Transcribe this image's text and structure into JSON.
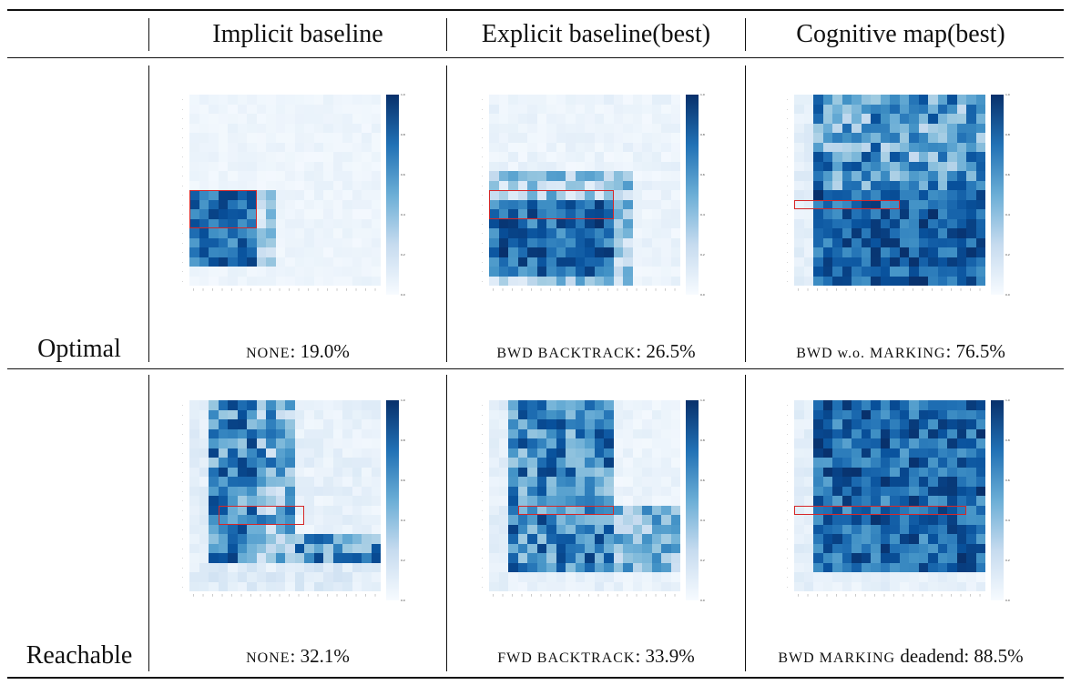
{
  "table": {
    "columns": [
      "Implicit baseline",
      "Explicit baseline(best)",
      "Cognitive map(best)"
    ],
    "rows": [
      {
        "label": "Optimal",
        "cells": [
          {
            "method": "NONE",
            "score": ": 19.0%"
          },
          {
            "method": "BWD BACKTRACK",
            "score": ": 26.5%"
          },
          {
            "method": "BWD w.o. MARKING",
            "score": ": 76.5%"
          }
        ]
      },
      {
        "label": "Reachable",
        "cells": [
          {
            "method": "NONE",
            "score": ": 32.1%"
          },
          {
            "method": "FWD BACKTRACK",
            "score": ": 33.9%"
          },
          {
            "method": "BWD MARKING",
            "score": " deadend: 88.5%"
          }
        ]
      }
    ]
  },
  "chart_data": {
    "type": "heatmap",
    "grid_size": 20,
    "value_range": [
      0,
      1
    ],
    "colormap": "Blues",
    "colorbar_ticks": [
      "1.0",
      "0.8",
      "0.6",
      "0.4",
      "0.2",
      "0.0"
    ],
    "panels": [
      {
        "row": "Optimal",
        "column": "Implicit baseline",
        "caption": "NONE: 19.0%",
        "profile": "implicit-opt",
        "highlight": [
          10,
          0,
          13,
          6
        ]
      },
      {
        "row": "Optimal",
        "column": "Explicit baseline(best)",
        "caption": "BWD BACKTRACK: 26.5%",
        "profile": "explicit-opt",
        "highlight": [
          10,
          0,
          12,
          12
        ]
      },
      {
        "row": "Optimal",
        "column": "Cognitive map(best)",
        "caption": "BWD w.o. MARKING: 76.5%",
        "profile": "cogmap-opt",
        "highlight": [
          11,
          0,
          11,
          10
        ]
      },
      {
        "row": "Reachable",
        "column": "Implicit baseline",
        "caption": "NONE: 32.1%",
        "profile": "implicit-reach",
        "highlight": [
          11,
          3,
          12,
          11
        ]
      },
      {
        "row": "Reachable",
        "column": "Explicit baseline(best)",
        "caption": "FWD BACKTRACK: 33.9%",
        "profile": "explicit-reach",
        "highlight": [
          11,
          3,
          11,
          12
        ]
      },
      {
        "row": "Reachable",
        "column": "Cognitive map(best)",
        "caption": "BWD MARKING deadend: 88.5%",
        "profile": "cogmap-reach",
        "highlight": [
          11,
          0,
          11,
          17
        ]
      }
    ]
  }
}
